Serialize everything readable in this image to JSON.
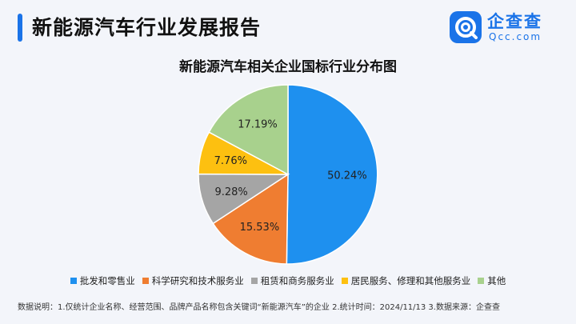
{
  "header": {
    "title": "新能源汽车行业发展报告"
  },
  "logo": {
    "name": "企查查",
    "url": "Qcc.com"
  },
  "colors": {
    "accent": "#1a73e8"
  },
  "chart_data": {
    "type": "pie",
    "title": "新能源汽车相关企业国标行业分布图",
    "categories": [
      "批发和零售业",
      "科学研究和技术服务业",
      "租赁和商务服务业",
      "居民服务、修理和其他服务业",
      "其他"
    ],
    "values": [
      50.24,
      15.53,
      9.28,
      7.76,
      17.19
    ],
    "data_labels": [
      "50.24%",
      "15.53%",
      "9.28%",
      "7.76%",
      "17.19%"
    ],
    "colors": [
      "#1e90ef",
      "#ef7d31",
      "#a5a5a5",
      "#fdc010",
      "#a8d18d"
    ],
    "legend_position": "bottom"
  },
  "footnote": "数据说明：1.仅统计企业名称、经营范围、品牌产品名称包含关键词“新能源汽车”的企业  2.统计时间：2024/11/13  3.数据来源：企查查"
}
